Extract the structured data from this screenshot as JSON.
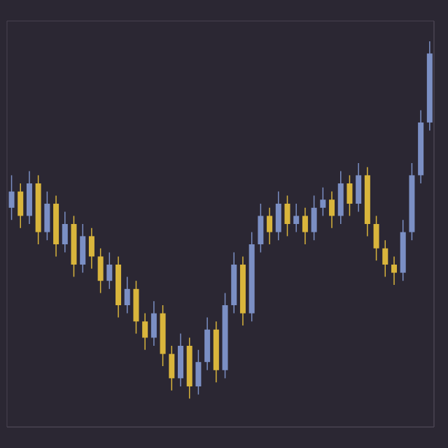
{
  "chart_data": {
    "type": "candlestick",
    "ylim": [
      0,
      100
    ],
    "yticks": [
      0,
      20,
      40,
      60,
      80,
      100
    ],
    "grid": true,
    "tick_labels": false,
    "open": [
      54,
      58,
      52,
      60,
      48,
      55,
      45,
      50,
      40,
      47,
      42,
      36,
      40,
      30,
      34,
      26,
      22,
      28,
      18,
      12,
      20,
      10,
      16,
      24,
      14,
      30,
      40,
      28,
      45,
      52,
      48,
      55,
      50,
      52,
      48,
      54,
      56,
      52,
      60,
      55,
      62,
      50,
      44,
      40,
      38,
      48,
      62,
      75
    ],
    "high": [
      62,
      60,
      63,
      62,
      58,
      57,
      53,
      52,
      50,
      49,
      44,
      43,
      42,
      37,
      36,
      28,
      31,
      30,
      20,
      23,
      22,
      19,
      27,
      26,
      33,
      43,
      42,
      48,
      55,
      54,
      58,
      57,
      55,
      54,
      57,
      59,
      58,
      63,
      62,
      65,
      64,
      52,
      46,
      42,
      51,
      65,
      78,
      95
    ],
    "low": [
      51,
      49,
      50,
      45,
      46,
      42,
      43,
      37,
      38,
      39,
      33,
      34,
      27,
      28,
      23,
      19,
      20,
      15,
      9,
      10,
      7,
      8,
      14,
      11,
      12,
      28,
      25,
      26,
      43,
      45,
      46,
      47,
      48,
      45,
      46,
      52,
      49,
      50,
      52,
      53,
      47,
      41,
      37,
      35,
      36,
      46,
      60,
      73
    ],
    "close": [
      58,
      52,
      60,
      48,
      55,
      45,
      50,
      40,
      47,
      42,
      36,
      40,
      30,
      34,
      26,
      22,
      28,
      18,
      12,
      20,
      10,
      16,
      24,
      14,
      30,
      40,
      28,
      45,
      52,
      48,
      55,
      50,
      52,
      48,
      54,
      56,
      52,
      60,
      55,
      62,
      50,
      44,
      40,
      38,
      48,
      62,
      75,
      92
    ],
    "colors": [
      "#7b8fc4",
      "#d9b53c",
      "#7b8fc4",
      "#d9b53c",
      "#7b8fc4",
      "#d9b53c",
      "#7b8fc4",
      "#d9b53c",
      "#7b8fc4",
      "#d9b53c",
      "#d9b53c",
      "#7b8fc4",
      "#d9b53c",
      "#7b8fc4",
      "#d9b53c",
      "#d9b53c",
      "#7b8fc4",
      "#d9b53c",
      "#d9b53c",
      "#7b8fc4",
      "#d9b53c",
      "#7b8fc4",
      "#7b8fc4",
      "#d9b53c",
      "#7b8fc4",
      "#7b8fc4",
      "#d9b53c",
      "#7b8fc4",
      "#7b8fc4",
      "#d9b53c",
      "#7b8fc4",
      "#d9b53c",
      "#7b8fc4",
      "#d9b53c",
      "#7b8fc4",
      "#7b8fc4",
      "#d9b53c",
      "#7b8fc4",
      "#d9b53c",
      "#7b8fc4",
      "#d9b53c",
      "#d9b53c",
      "#d9b53c",
      "#d9b53c",
      "#7b8fc4",
      "#7b8fc4",
      "#7b8fc4",
      "#7b8fc4"
    ]
  }
}
